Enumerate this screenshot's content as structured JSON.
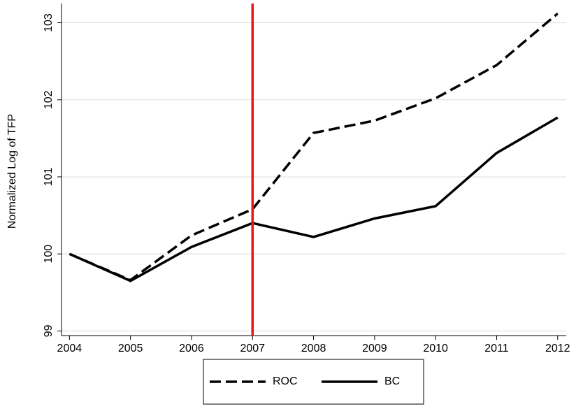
{
  "chart_data": {
    "type": "line",
    "y_label": "Normalized Log of TFP",
    "x": [
      2004,
      2005,
      2006,
      2007,
      2008,
      2009,
      2010,
      2011,
      2012
    ],
    "series": [
      {
        "name": "ROC",
        "color": "#000000",
        "dash": true,
        "values": [
          100,
          99.66,
          100.24,
          100.58,
          101.57,
          101.73,
          102.02,
          102.45,
          103.12
        ]
      },
      {
        "name": "BC",
        "color": "#000000",
        "dash": false,
        "values": [
          100,
          99.65,
          100.09,
          100.4,
          100.22,
          100.46,
          100.62,
          101.31,
          101.77
        ]
      }
    ],
    "vline": {
      "x": 2007,
      "color": "#e8161b"
    },
    "xlim": [
      2003.87,
      2012.14
    ],
    "xticks": [
      2004,
      2005,
      2006,
      2007,
      2008,
      2009,
      2010,
      2011,
      2012
    ],
    "ylim": [
      98.94,
      103.25
    ],
    "yticks": [
      99,
      100,
      101,
      102,
      103
    ],
    "grid": true,
    "legend": "bottom"
  }
}
